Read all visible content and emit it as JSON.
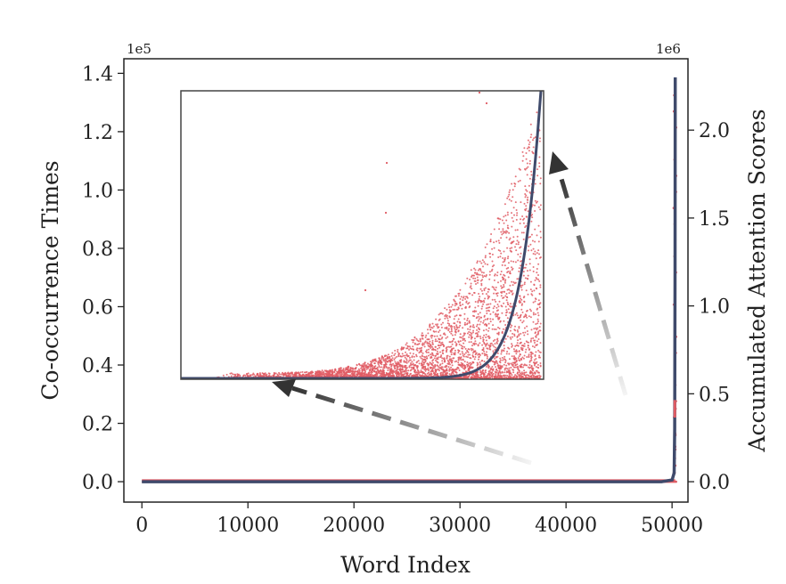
{
  "chart_data": {
    "type": "scatter",
    "xlabel": "Word Index",
    "ylabel_left": "Co-occurrence Times",
    "ylabel_right": "Accumulated Attention Scores",
    "left_exponent": "1e5",
    "right_exponent": "1e6",
    "xlim": [
      -1700,
      51500
    ],
    "ylim_left": [
      -0.07,
      1.45
    ],
    "ylim_right": [
      -0.116,
      2.406
    ],
    "xticks": [
      0,
      10000,
      20000,
      30000,
      40000,
      50000
    ],
    "xtick_labels": [
      "0",
      "10000",
      "20000",
      "30000",
      "40000",
      "50000"
    ],
    "yticks_left": [
      0.0,
      0.2,
      0.4,
      0.6,
      0.8,
      1.0,
      1.2,
      1.4
    ],
    "ytick_labels_left": [
      "0.0",
      "0.2",
      "0.4",
      "0.6",
      "0.8",
      "1.0",
      "1.2",
      "1.4"
    ],
    "yticks_right": [
      0.0,
      0.5,
      1.0,
      1.5,
      2.0
    ],
    "ytick_labels_right": [
      "0.0",
      "0.5",
      "1.0",
      "1.5",
      "2.0"
    ],
    "series": [
      {
        "kind": "scatter",
        "axis": "left",
        "color": "#e05c64",
        "x_range": [
          0,
          50300
        ],
        "max_y": 1.38,
        "points_main_spike": [
          [
            50200,
            0.03
          ],
          [
            50230,
            0.08
          ],
          [
            50260,
            0.12
          ],
          [
            50280,
            0.16
          ],
          [
            50290,
            0.25
          ]
        ]
      },
      {
        "kind": "line",
        "axis": "right",
        "color": "#3f4a6b",
        "x": [
          0,
          49000,
          50000,
          50200,
          50250,
          50280,
          50300
        ],
        "y": [
          0.0,
          0.0,
          0.01,
          0.05,
          0.3,
          1.2,
          2.3
        ]
      }
    ],
    "inset": {
      "type": "zoom",
      "note": "zoomed view of the same scatter (red) and accumulated curve (dark)",
      "colors": {
        "points": "#e05c64",
        "curve": "#3f4a6b",
        "arrow": "#333333"
      }
    }
  }
}
